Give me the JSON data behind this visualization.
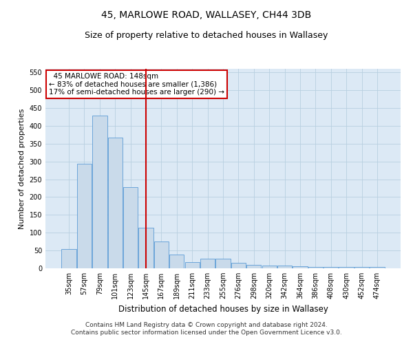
{
  "title": "45, MARLOWE ROAD, WALLASEY, CH44 3DB",
  "subtitle": "Size of property relative to detached houses in Wallasey",
  "xlabel": "Distribution of detached houses by size in Wallasey",
  "ylabel": "Number of detached properties",
  "categories": [
    "35sqm",
    "57sqm",
    "79sqm",
    "101sqm",
    "123sqm",
    "145sqm",
    "167sqm",
    "189sqm",
    "211sqm",
    "233sqm",
    "255sqm",
    "276sqm",
    "298sqm",
    "320sqm",
    "342sqm",
    "364sqm",
    "386sqm",
    "408sqm",
    "430sqm",
    "452sqm",
    "474sqm"
  ],
  "values": [
    55,
    293,
    428,
    367,
    227,
    113,
    76,
    39,
    18,
    27,
    27,
    15,
    10,
    8,
    8,
    6,
    3,
    3,
    3,
    3,
    3
  ],
  "bar_color": "#c9daea",
  "bar_edge_color": "#5b9bd5",
  "vline_x": 5,
  "vline_color": "#cc0000",
  "annotation_line1": "  45 MARLOWE ROAD: 148sqm",
  "annotation_line2": "← 83% of detached houses are smaller (1,386)",
  "annotation_line3": "17% of semi-detached houses are larger (290) →",
  "annotation_box_color": "#ffffff",
  "annotation_box_edge": "#cc0000",
  "ylim": [
    0,
    560
  ],
  "yticks": [
    0,
    50,
    100,
    150,
    200,
    250,
    300,
    350,
    400,
    450,
    500,
    550
  ],
  "footer": "Contains HM Land Registry data © Crown copyright and database right 2024.\nContains public sector information licensed under the Open Government Licence v3.0.",
  "bg_color": "#ffffff",
  "plot_bg_color": "#dce9f5",
  "grid_color": "#b8cfe0",
  "title_fontsize": 10,
  "subtitle_fontsize": 9,
  "xlabel_fontsize": 8.5,
  "ylabel_fontsize": 8,
  "tick_fontsize": 7,
  "annot_fontsize": 7.5,
  "footer_fontsize": 6.5
}
